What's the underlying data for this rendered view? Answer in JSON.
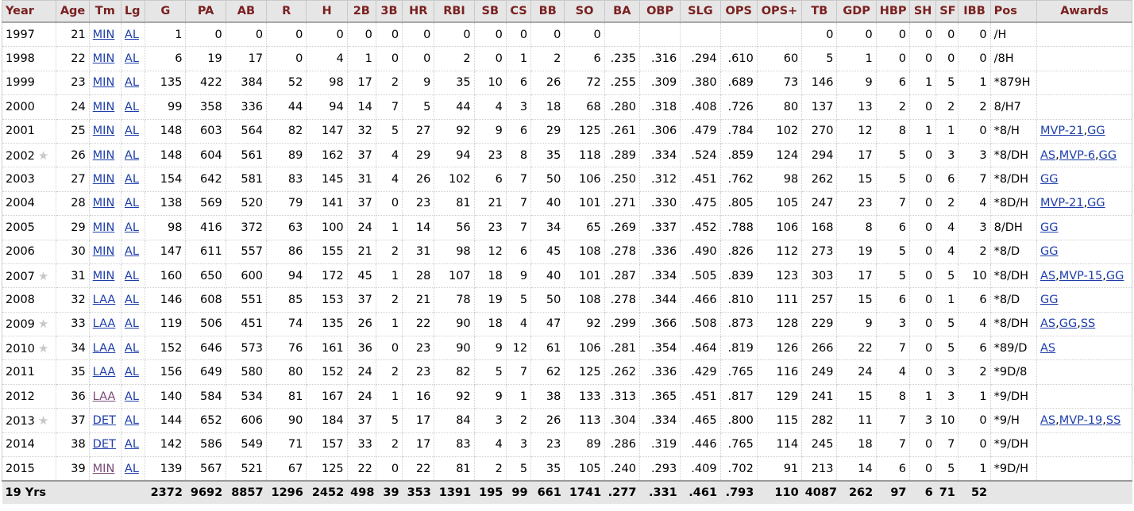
{
  "headers": [
    "Year",
    "Age",
    "Tm",
    "Lg",
    "G",
    "PA",
    "AB",
    "R",
    "H",
    "2B",
    "3B",
    "HR",
    "RBI",
    "SB",
    "CS",
    "BB",
    "SO",
    "BA",
    "OBP",
    "SLG",
    "OPS",
    "OPS+",
    "TB",
    "GDP",
    "HBP",
    "SH",
    "SF",
    "IBB",
    "Pos",
    "Awards"
  ],
  "rows": [
    {
      "year": "1997",
      "star": false,
      "age": "21",
      "tm": "MIN",
      "tm_visited": false,
      "lg": "AL",
      "g": "1",
      "pa": "0",
      "ab": "0",
      "r": "0",
      "h": "0",
      "d2": "0",
      "d3": "0",
      "hr": "0",
      "rbi": "0",
      "sb": "0",
      "cs": "0",
      "bb": "0",
      "so": "0",
      "ba": "",
      "obp": "",
      "slg": "",
      "ops": "",
      "opsp": "",
      "tb": "0",
      "gdp": "0",
      "hbp": "0",
      "sh": "0",
      "sf": "0",
      "ibb": "0",
      "pos": "/H",
      "awards": []
    },
    {
      "year": "1998",
      "star": false,
      "age": "22",
      "tm": "MIN",
      "tm_visited": false,
      "lg": "AL",
      "g": "6",
      "pa": "19",
      "ab": "17",
      "r": "0",
      "h": "4",
      "d2": "1",
      "d3": "0",
      "hr": "0",
      "rbi": "2",
      "sb": "0",
      "cs": "1",
      "bb": "2",
      "so": "6",
      "ba": ".235",
      "obp": ".316",
      "slg": ".294",
      "ops": ".610",
      "opsp": "60",
      "tb": "5",
      "gdp": "1",
      "hbp": "0",
      "sh": "0",
      "sf": "0",
      "ibb": "0",
      "pos": "/8H",
      "awards": []
    },
    {
      "year": "1999",
      "star": false,
      "age": "23",
      "tm": "MIN",
      "tm_visited": false,
      "lg": "AL",
      "g": "135",
      "pa": "422",
      "ab": "384",
      "r": "52",
      "h": "98",
      "d2": "17",
      "d3": "2",
      "hr": "9",
      "rbi": "35",
      "sb": "10",
      "cs": "6",
      "bb": "26",
      "so": "72",
      "ba": ".255",
      "obp": ".309",
      "slg": ".380",
      "ops": ".689",
      "opsp": "73",
      "tb": "146",
      "gdp": "9",
      "hbp": "6",
      "sh": "1",
      "sf": "5",
      "ibb": "1",
      "pos": "*879H",
      "awards": []
    },
    {
      "year": "2000",
      "star": false,
      "age": "24",
      "tm": "MIN",
      "tm_visited": false,
      "lg": "AL",
      "g": "99",
      "pa": "358",
      "ab": "336",
      "r": "44",
      "h": "94",
      "d2": "14",
      "d3": "7",
      "hr": "5",
      "rbi": "44",
      "sb": "4",
      "cs": "3",
      "bb": "18",
      "so": "68",
      "ba": ".280",
      "obp": ".318",
      "slg": ".408",
      "ops": ".726",
      "opsp": "80",
      "tb": "137",
      "gdp": "13",
      "hbp": "2",
      "sh": "0",
      "sf": "2",
      "ibb": "2",
      "pos": "8/H7",
      "awards": []
    },
    {
      "year": "2001",
      "star": false,
      "age": "25",
      "tm": "MIN",
      "tm_visited": false,
      "lg": "AL",
      "g": "148",
      "pa": "603",
      "ab": "564",
      "r": "82",
      "h": "147",
      "d2": "32",
      "d3": "5",
      "hr": "27",
      "rbi": "92",
      "sb": "9",
      "cs": "6",
      "bb": "29",
      "so": "125",
      "ba": ".261",
      "obp": ".306",
      "slg": ".479",
      "ops": ".784",
      "opsp": "102",
      "tb": "270",
      "gdp": "12",
      "hbp": "8",
      "sh": "1",
      "sf": "1",
      "ibb": "0",
      "pos": "*8/H",
      "awards": [
        "MVP-21",
        "GG"
      ]
    },
    {
      "year": "2002",
      "star": true,
      "age": "26",
      "tm": "MIN",
      "tm_visited": false,
      "lg": "AL",
      "g": "148",
      "pa": "604",
      "ab": "561",
      "r": "89",
      "h": "162",
      "d2": "37",
      "d3": "4",
      "hr": "29",
      "rbi": "94",
      "sb": "23",
      "cs": "8",
      "bb": "35",
      "so": "118",
      "ba": ".289",
      "obp": ".334",
      "slg": ".524",
      "ops": ".859",
      "opsp": "124",
      "tb": "294",
      "gdp": "17",
      "hbp": "5",
      "sh": "0",
      "sf": "3",
      "ibb": "3",
      "pos": "*8/DH",
      "awards": [
        "AS",
        "MVP-6",
        "GG"
      ]
    },
    {
      "year": "2003",
      "star": false,
      "age": "27",
      "tm": "MIN",
      "tm_visited": false,
      "lg": "AL",
      "g": "154",
      "pa": "642",
      "ab": "581",
      "r": "83",
      "h": "145",
      "d2": "31",
      "d3": "4",
      "hr": "26",
      "rbi": "102",
      "sb": "6",
      "cs": "7",
      "bb": "50",
      "so": "106",
      "ba": ".250",
      "obp": ".312",
      "slg": ".451",
      "ops": ".762",
      "opsp": "98",
      "tb": "262",
      "gdp": "15",
      "hbp": "5",
      "sh": "0",
      "sf": "6",
      "ibb": "7",
      "pos": "*8/DH",
      "awards": [
        "GG"
      ]
    },
    {
      "year": "2004",
      "star": false,
      "age": "28",
      "tm": "MIN",
      "tm_visited": false,
      "lg": "AL",
      "g": "138",
      "pa": "569",
      "ab": "520",
      "r": "79",
      "h": "141",
      "d2": "37",
      "d3": "0",
      "hr": "23",
      "rbi": "81",
      "sb": "21",
      "cs": "7",
      "bb": "40",
      "so": "101",
      "ba": ".271",
      "obp": ".330",
      "slg": ".475",
      "ops": ".805",
      "opsp": "105",
      "tb": "247",
      "gdp": "23",
      "hbp": "7",
      "sh": "0",
      "sf": "2",
      "ibb": "4",
      "pos": "*8D/H",
      "awards": [
        "MVP-21",
        "GG"
      ]
    },
    {
      "year": "2005",
      "star": false,
      "age": "29",
      "tm": "MIN",
      "tm_visited": false,
      "lg": "AL",
      "g": "98",
      "pa": "416",
      "ab": "372",
      "r": "63",
      "h": "100",
      "d2": "24",
      "d3": "1",
      "hr": "14",
      "rbi": "56",
      "sb": "23",
      "cs": "7",
      "bb": "34",
      "so": "65",
      "ba": ".269",
      "obp": ".337",
      "slg": ".452",
      "ops": ".788",
      "opsp": "106",
      "tb": "168",
      "gdp": "8",
      "hbp": "6",
      "sh": "0",
      "sf": "4",
      "ibb": "3",
      "pos": "8/DH",
      "awards": [
        "GG"
      ]
    },
    {
      "year": "2006",
      "star": false,
      "age": "30",
      "tm": "MIN",
      "tm_visited": false,
      "lg": "AL",
      "g": "147",
      "pa": "611",
      "ab": "557",
      "r": "86",
      "h": "155",
      "d2": "21",
      "d3": "2",
      "hr": "31",
      "rbi": "98",
      "sb": "12",
      "cs": "6",
      "bb": "45",
      "so": "108",
      "ba": ".278",
      "obp": ".336",
      "slg": ".490",
      "ops": ".826",
      "opsp": "112",
      "tb": "273",
      "gdp": "19",
      "hbp": "5",
      "sh": "0",
      "sf": "4",
      "ibb": "2",
      "pos": "*8/D",
      "awards": [
        "GG"
      ]
    },
    {
      "year": "2007",
      "star": true,
      "age": "31",
      "tm": "MIN",
      "tm_visited": false,
      "lg": "AL",
      "g": "160",
      "pa": "650",
      "ab": "600",
      "r": "94",
      "h": "172",
      "d2": "45",
      "d3": "1",
      "hr": "28",
      "rbi": "107",
      "sb": "18",
      "cs": "9",
      "bb": "40",
      "so": "101",
      "ba": ".287",
      "obp": ".334",
      "slg": ".505",
      "ops": ".839",
      "opsp": "123",
      "tb": "303",
      "gdp": "17",
      "hbp": "5",
      "sh": "0",
      "sf": "5",
      "ibb": "10",
      "pos": "*8/DH",
      "awards": [
        "AS",
        "MVP-15",
        "GG"
      ]
    },
    {
      "year": "2008",
      "star": false,
      "age": "32",
      "tm": "LAA",
      "tm_visited": false,
      "lg": "AL",
      "g": "146",
      "pa": "608",
      "ab": "551",
      "r": "85",
      "h": "153",
      "d2": "37",
      "d3": "2",
      "hr": "21",
      "rbi": "78",
      "sb": "19",
      "cs": "5",
      "bb": "50",
      "so": "108",
      "ba": ".278",
      "obp": ".344",
      "slg": ".466",
      "ops": ".810",
      "opsp": "111",
      "tb": "257",
      "gdp": "15",
      "hbp": "6",
      "sh": "0",
      "sf": "1",
      "ibb": "6",
      "pos": "*8/D",
      "awards": [
        "GG"
      ]
    },
    {
      "year": "2009",
      "star": true,
      "age": "33",
      "tm": "LAA",
      "tm_visited": false,
      "lg": "AL",
      "g": "119",
      "pa": "506",
      "ab": "451",
      "r": "74",
      "h": "135",
      "d2": "26",
      "d3": "1",
      "hr": "22",
      "rbi": "90",
      "sb": "18",
      "cs": "4",
      "bb": "47",
      "so": "92",
      "ba": ".299",
      "obp": ".366",
      "slg": ".508",
      "ops": ".873",
      "opsp": "128",
      "tb": "229",
      "gdp": "9",
      "hbp": "3",
      "sh": "0",
      "sf": "5",
      "ibb": "4",
      "pos": "*8/DH",
      "awards": [
        "AS",
        "GG",
        "SS"
      ]
    },
    {
      "year": "2010",
      "star": true,
      "age": "34",
      "tm": "LAA",
      "tm_visited": false,
      "lg": "AL",
      "g": "152",
      "pa": "646",
      "ab": "573",
      "r": "76",
      "h": "161",
      "d2": "36",
      "d3": "0",
      "hr": "23",
      "rbi": "90",
      "sb": "9",
      "cs": "12",
      "bb": "61",
      "so": "106",
      "ba": ".281",
      "obp": ".354",
      "slg": ".464",
      "ops": ".819",
      "opsp": "126",
      "tb": "266",
      "gdp": "22",
      "hbp": "7",
      "sh": "0",
      "sf": "5",
      "ibb": "6",
      "pos": "*89/D",
      "awards": [
        "AS"
      ]
    },
    {
      "year": "2011",
      "star": false,
      "age": "35",
      "tm": "LAA",
      "tm_visited": false,
      "lg": "AL",
      "g": "156",
      "pa": "649",
      "ab": "580",
      "r": "80",
      "h": "152",
      "d2": "24",
      "d3": "2",
      "hr": "23",
      "rbi": "82",
      "sb": "5",
      "cs": "7",
      "bb": "62",
      "so": "125",
      "ba": ".262",
      "obp": ".336",
      "slg": ".429",
      "ops": ".765",
      "opsp": "116",
      "tb": "249",
      "gdp": "24",
      "hbp": "4",
      "sh": "0",
      "sf": "3",
      "ibb": "2",
      "pos": "*9D/8",
      "awards": []
    },
    {
      "year": "2012",
      "star": false,
      "age": "36",
      "tm": "LAA",
      "tm_visited": true,
      "lg": "AL",
      "g": "140",
      "pa": "584",
      "ab": "534",
      "r": "81",
      "h": "167",
      "d2": "24",
      "d3": "1",
      "hr": "16",
      "rbi": "92",
      "sb": "9",
      "cs": "1",
      "bb": "38",
      "so": "133",
      "ba": ".313",
      "obp": ".365",
      "slg": ".451",
      "ops": ".817",
      "opsp": "129",
      "tb": "241",
      "gdp": "15",
      "hbp": "8",
      "sh": "1",
      "sf": "3",
      "ibb": "1",
      "pos": "*9/DH",
      "awards": []
    },
    {
      "year": "2013",
      "star": true,
      "age": "37",
      "tm": "DET",
      "tm_visited": false,
      "lg": "AL",
      "g": "144",
      "pa": "652",
      "ab": "606",
      "r": "90",
      "h": "184",
      "d2": "37",
      "d3": "5",
      "hr": "17",
      "rbi": "84",
      "sb": "3",
      "cs": "2",
      "bb": "26",
      "so": "113",
      "ba": ".304",
      "obp": ".334",
      "slg": ".465",
      "ops": ".800",
      "opsp": "115",
      "tb": "282",
      "gdp": "11",
      "hbp": "7",
      "sh": "3",
      "sf": "10",
      "ibb": "0",
      "pos": "*9/H",
      "awards": [
        "AS",
        "MVP-19",
        "SS"
      ]
    },
    {
      "year": "2014",
      "star": false,
      "age": "38",
      "tm": "DET",
      "tm_visited": false,
      "lg": "AL",
      "g": "142",
      "pa": "586",
      "ab": "549",
      "r": "71",
      "h": "157",
      "d2": "33",
      "d3": "2",
      "hr": "17",
      "rbi": "83",
      "sb": "4",
      "cs": "3",
      "bb": "23",
      "so": "89",
      "ba": ".286",
      "obp": ".319",
      "slg": ".446",
      "ops": ".765",
      "opsp": "114",
      "tb": "245",
      "gdp": "18",
      "hbp": "7",
      "sh": "0",
      "sf": "7",
      "ibb": "0",
      "pos": "*9/DH",
      "awards": []
    },
    {
      "year": "2015",
      "star": false,
      "age": "39",
      "tm": "MIN",
      "tm_visited": true,
      "lg": "AL",
      "g": "139",
      "pa": "567",
      "ab": "521",
      "r": "67",
      "h": "125",
      "d2": "22",
      "d3": "0",
      "hr": "22",
      "rbi": "81",
      "sb": "2",
      "cs": "5",
      "bb": "35",
      "so": "105",
      "ba": ".240",
      "obp": ".293",
      "slg": ".409",
      "ops": ".702",
      "opsp": "91",
      "tb": "213",
      "gdp": "14",
      "hbp": "6",
      "sh": "0",
      "sf": "5",
      "ibb": "1",
      "pos": "*9D/H",
      "awards": []
    }
  ],
  "totals": {
    "label": "19 Yrs",
    "g": "2372",
    "pa": "9692",
    "ab": "8857",
    "r": "1296",
    "h": "2452",
    "d2": "498",
    "d3": "39",
    "hr": "353",
    "rbi": "1391",
    "sb": "195",
    "cs": "99",
    "bb": "661",
    "so": "1741",
    "ba": ".277",
    "obp": ".331",
    "slg": ".461",
    "ops": ".793",
    "opsp": "110",
    "tb": "4087",
    "gdp": "262",
    "hbp": "97",
    "sh": "6",
    "sf": "71",
    "ibb": "52"
  },
  "colors": {
    "header_text": "#7a2020",
    "header_bg": "#e6e6e6",
    "link": "#1e3faa",
    "visited_link": "#7a4a7a",
    "star": "#c8c8c8"
  },
  "icons": {
    "star": "star-icon"
  }
}
